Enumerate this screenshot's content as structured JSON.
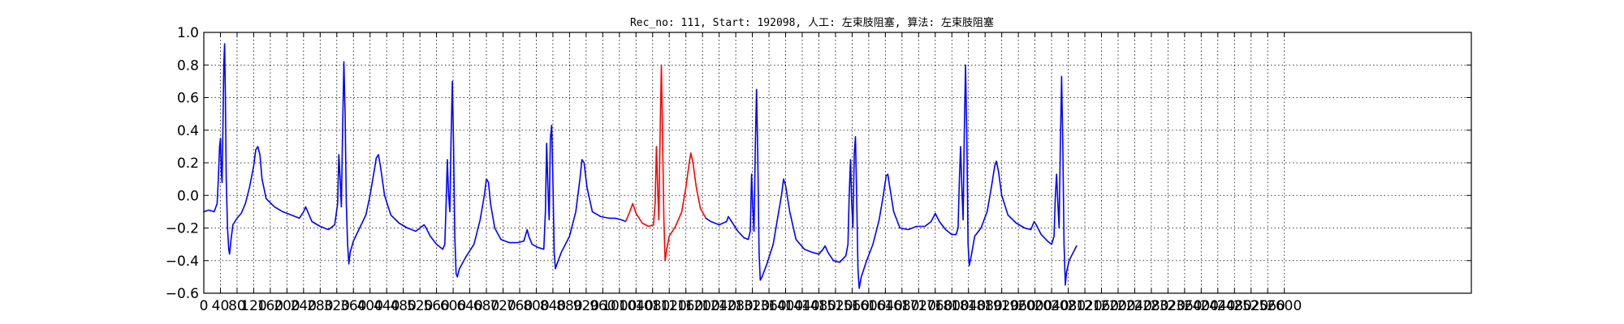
{
  "chart_data": {
    "type": "line",
    "title": "Rec_no: 111, Start: 192098, 人工: 左束肢阻塞, 算法: 左束肢阻塞",
    "xlabel": "",
    "ylabel": "",
    "xlim": [
      0,
      3050
    ],
    "ylim": [
      -0.6,
      1.0
    ],
    "grid": true,
    "xticks": [
      0,
      40,
      80,
      120,
      160,
      200,
      240,
      280,
      320,
      360,
      400,
      440,
      480,
      520,
      560,
      600,
      640,
      680,
      720,
      760,
      800,
      840,
      880,
      920,
      960,
      1000,
      1040,
      1080,
      1120,
      1160,
      1200,
      1240,
      1280,
      1320,
      1360,
      1400,
      1440,
      1480,
      1520,
      1560,
      1600,
      1640,
      1680,
      1720,
      1760,
      1800,
      1840,
      1880,
      1920,
      1960,
      2000,
      2040,
      2080,
      2120,
      2160,
      2200,
      2240,
      2280,
      2320,
      2360,
      2400,
      2440,
      2480,
      2520,
      2560,
      2600
    ],
    "xtick_labels": [
      "0",
      "40",
      "80",
      "120",
      "160",
      "200",
      "240",
      "280",
      "320",
      "360",
      "400",
      "440",
      "480",
      "520",
      "560",
      "600",
      "640",
      "680",
      "720",
      "760",
      "800",
      "840",
      "880",
      "920",
      "960",
      "1000",
      "1040",
      "1080",
      "1120",
      "1160",
      "1200",
      "1240",
      "1280",
      "1320",
      "1360",
      "1400",
      "1440",
      "1480",
      "1520",
      "1560",
      "1600",
      "1640",
      "1680",
      "1720",
      "1760",
      "1800",
      "1840",
      "1880",
      "1920",
      "1960",
      "2000",
      "2040",
      "2080",
      "2120",
      "2160",
      "2200",
      "2240",
      "2280",
      "2320",
      "2360",
      "2400",
      "2440",
      "2480",
      "2520",
      "2560",
      "2600"
    ],
    "yticks": [
      -0.6,
      -0.4,
      -0.2,
      0.0,
      0.2,
      0.4,
      0.6,
      0.8,
      1.0
    ],
    "ytick_labels": [
      "−0.6",
      "−0.4",
      "−0.2",
      "0.0",
      "0.2",
      "0.4",
      "0.6",
      "0.8",
      "1.0"
    ],
    "series": [
      {
        "color": "#0000ff",
        "points": [
          [
            0,
            -0.1
          ],
          [
            12,
            -0.09
          ],
          [
            25,
            -0.1
          ],
          [
            32,
            -0.05
          ],
          [
            35,
            0.1
          ],
          [
            38,
            0.3
          ],
          [
            40,
            0.35
          ],
          [
            42,
            0.15
          ],
          [
            44,
            0.08
          ],
          [
            46,
            0.4
          ],
          [
            48,
            0.8
          ],
          [
            50,
            0.93
          ],
          [
            52,
            0.6
          ],
          [
            54,
            0.1
          ],
          [
            57,
            -0.2
          ],
          [
            60,
            -0.33
          ],
          [
            62,
            -0.36
          ],
          [
            65,
            -0.28
          ],
          [
            70,
            -0.18
          ],
          [
            80,
            -0.14
          ],
          [
            90,
            -0.11
          ],
          [
            100,
            -0.05
          ],
          [
            110,
            0.05
          ],
          [
            120,
            0.18
          ],
          [
            125,
            0.28
          ],
          [
            130,
            0.3
          ],
          [
            135,
            0.25
          ],
          [
            140,
            0.1
          ],
          [
            150,
            -0.02
          ],
          [
            170,
            -0.07
          ],
          [
            190,
            -0.1
          ],
          [
            210,
            -0.12
          ],
          [
            230,
            -0.14
          ],
          [
            240,
            -0.1
          ],
          [
            245,
            -0.07
          ],
          [
            250,
            -0.1
          ],
          [
            260,
            -0.16
          ],
          [
            280,
            -0.19
          ],
          [
            300,
            -0.21
          ],
          [
            315,
            -0.18
          ],
          [
            322,
            -0.05
          ],
          [
            325,
            0.25
          ],
          [
            328,
            0.1
          ],
          [
            331,
            -0.07
          ],
          [
            334,
            0.4
          ],
          [
            337,
            0.82
          ],
          [
            340,
            0.5
          ],
          [
            343,
            -0.05
          ],
          [
            346,
            -0.3
          ],
          [
            349,
            -0.42
          ],
          [
            352,
            -0.35
          ],
          [
            360,
            -0.28
          ],
          [
            375,
            -0.2
          ],
          [
            390,
            -0.12
          ],
          [
            400,
            0.0
          ],
          [
            410,
            0.15
          ],
          [
            415,
            0.23
          ],
          [
            420,
            0.25
          ],
          [
            425,
            0.18
          ],
          [
            435,
            0.0
          ],
          [
            450,
            -0.12
          ],
          [
            470,
            -0.17
          ],
          [
            490,
            -0.2
          ],
          [
            510,
            -0.22
          ],
          [
            525,
            -0.19
          ],
          [
            530,
            -0.18
          ],
          [
            535,
            -0.2
          ],
          [
            545,
            -0.25
          ],
          [
            560,
            -0.3
          ],
          [
            575,
            -0.33
          ],
          [
            580,
            -0.3
          ],
          [
            583,
            -0.05
          ],
          [
            586,
            0.22
          ],
          [
            589,
            0.0
          ],
          [
            592,
            -0.1
          ],
          [
            595,
            0.35
          ],
          [
            598,
            0.7
          ],
          [
            601,
            0.3
          ],
          [
            604,
            -0.25
          ],
          [
            607,
            -0.48
          ],
          [
            610,
            -0.5
          ],
          [
            615,
            -0.45
          ],
          [
            630,
            -0.38
          ],
          [
            650,
            -0.3
          ],
          [
            665,
            -0.15
          ],
          [
            675,
            0.0
          ],
          [
            680,
            0.1
          ],
          [
            685,
            0.08
          ],
          [
            690,
            -0.05
          ],
          [
            700,
            -0.2
          ],
          [
            715,
            -0.27
          ],
          [
            735,
            -0.29
          ],
          [
            755,
            -0.29
          ],
          [
            770,
            -0.28
          ],
          [
            778,
            -0.21
          ],
          [
            782,
            -0.25
          ],
          [
            790,
            -0.3
          ],
          [
            805,
            -0.32
          ],
          [
            818,
            -0.33
          ],
          [
            822,
            -0.1
          ],
          [
            825,
            0.32
          ],
          [
            828,
            0.05
          ],
          [
            831,
            -0.15
          ],
          [
            834,
            0.35
          ],
          [
            837,
            0.43
          ],
          [
            840,
            0.1
          ],
          [
            843,
            -0.35
          ],
          [
            846,
            -0.45
          ],
          [
            850,
            -0.42
          ],
          [
            860,
            -0.35
          ],
          [
            880,
            -0.25
          ],
          [
            895,
            -0.1
          ],
          [
            905,
            0.1
          ],
          [
            910,
            0.22
          ],
          [
            915,
            0.2
          ],
          [
            922,
            0.05
          ],
          [
            935,
            -0.1
          ],
          [
            955,
            -0.13
          ],
          [
            975,
            -0.14
          ],
          [
            990,
            -0.14
          ],
          [
            1005,
            -0.15
          ],
          [
            1015,
            -0.16
          ]
        ]
      },
      {
        "color": "#ff0000",
        "points": [
          [
            1015,
            -0.16
          ],
          [
            1025,
            -0.1
          ],
          [
            1032,
            -0.05
          ],
          [
            1040,
            -0.11
          ],
          [
            1055,
            -0.17
          ],
          [
            1070,
            -0.19
          ],
          [
            1082,
            -0.18
          ],
          [
            1086,
            -0.05
          ],
          [
            1089,
            0.3
          ],
          [
            1092,
            0.05
          ],
          [
            1095,
            -0.15
          ],
          [
            1098,
            0.4
          ],
          [
            1101,
            0.8
          ],
          [
            1104,
            0.35
          ],
          [
            1107,
            -0.15
          ],
          [
            1110,
            -0.4
          ],
          [
            1114,
            -0.33
          ],
          [
            1120,
            -0.25
          ],
          [
            1135,
            -0.19
          ],
          [
            1150,
            -0.1
          ],
          [
            1160,
            0.05
          ],
          [
            1168,
            0.2
          ],
          [
            1172,
            0.26
          ],
          [
            1177,
            0.2
          ],
          [
            1185,
            0.05
          ],
          [
            1195,
            -0.08
          ],
          [
            1208,
            -0.14
          ]
        ]
      },
      {
        "color": "#0000ff",
        "points": [
          [
            1208,
            -0.14
          ],
          [
            1220,
            -0.16
          ],
          [
            1240,
            -0.18
          ],
          [
            1258,
            -0.16
          ],
          [
            1262,
            -0.13
          ],
          [
            1270,
            -0.16
          ],
          [
            1285,
            -0.22
          ],
          [
            1300,
            -0.26
          ],
          [
            1310,
            -0.27
          ],
          [
            1315,
            -0.22
          ],
          [
            1318,
            0.13
          ],
          [
            1321,
            -0.08
          ],
          [
            1324,
            -0.22
          ],
          [
            1327,
            0.3
          ],
          [
            1330,
            0.65
          ],
          [
            1333,
            0.25
          ],
          [
            1336,
            -0.35
          ],
          [
            1339,
            -0.52
          ],
          [
            1343,
            -0.5
          ],
          [
            1355,
            -0.42
          ],
          [
            1370,
            -0.3
          ],
          [
            1380,
            -0.15
          ],
          [
            1390,
            0.0
          ],
          [
            1395,
            0.1
          ],
          [
            1400,
            0.06
          ],
          [
            1410,
            -0.1
          ],
          [
            1425,
            -0.27
          ],
          [
            1445,
            -0.33
          ],
          [
            1465,
            -0.35
          ],
          [
            1480,
            -0.36
          ],
          [
            1490,
            -0.33
          ],
          [
            1495,
            -0.31
          ],
          [
            1502,
            -0.35
          ],
          [
            1515,
            -0.4
          ],
          [
            1530,
            -0.41
          ],
          [
            1545,
            -0.37
          ],
          [
            1550,
            -0.3
          ],
          [
            1553,
            0.0
          ],
          [
            1556,
            0.22
          ],
          [
            1559,
            -0.05
          ],
          [
            1562,
            -0.2
          ],
          [
            1565,
            0.25
          ],
          [
            1568,
            0.36
          ],
          [
            1571,
            0.0
          ],
          [
            1574,
            -0.45
          ],
          [
            1577,
            -0.57
          ],
          [
            1582,
            -0.5
          ],
          [
            1595,
            -0.4
          ],
          [
            1610,
            -0.3
          ],
          [
            1625,
            -0.15
          ],
          [
            1635,
            0.0
          ],
          [
            1642,
            0.12
          ],
          [
            1646,
            0.13
          ],
          [
            1650,
            0.06
          ],
          [
            1660,
            -0.1
          ],
          [
            1675,
            -0.2
          ],
          [
            1695,
            -0.21
          ],
          [
            1715,
            -0.19
          ],
          [
            1735,
            -0.19
          ],
          [
            1750,
            -0.16
          ],
          [
            1760,
            -0.11
          ],
          [
            1770,
            -0.16
          ],
          [
            1785,
            -0.21
          ],
          [
            1800,
            -0.24
          ],
          [
            1810,
            -0.24
          ],
          [
            1815,
            -0.2
          ],
          [
            1818,
            0.1
          ],
          [
            1821,
            0.3
          ],
          [
            1824,
            0.05
          ],
          [
            1827,
            -0.15
          ],
          [
            1830,
            0.4
          ],
          [
            1833,
            0.8
          ],
          [
            1836,
            0.35
          ],
          [
            1839,
            -0.3
          ],
          [
            1842,
            -0.43
          ],
          [
            1846,
            -0.38
          ],
          [
            1855,
            -0.25
          ],
          [
            1870,
            -0.2
          ],
          [
            1885,
            -0.1
          ],
          [
            1895,
            0.05
          ],
          [
            1903,
            0.18
          ],
          [
            1907,
            0.21
          ],
          [
            1912,
            0.15
          ],
          [
            1920,
            0.0
          ],
          [
            1935,
            -0.12
          ],
          [
            1955,
            -0.17
          ],
          [
            1975,
            -0.2
          ],
          [
            1990,
            -0.21
          ],
          [
            1998,
            -0.16
          ],
          [
            2003,
            -0.18
          ],
          [
            2015,
            -0.24
          ],
          [
            2030,
            -0.28
          ],
          [
            2040,
            -0.3
          ],
          [
            2046,
            -0.25
          ],
          [
            2049,
            0.0
          ],
          [
            2052,
            0.13
          ],
          [
            2055,
            -0.05
          ],
          [
            2058,
            -0.2
          ],
          [
            2061,
            0.3
          ],
          [
            2064,
            0.73
          ],
          [
            2067,
            0.3
          ],
          [
            2070,
            -0.3
          ],
          [
            2073,
            -0.55
          ],
          [
            2076,
            -0.47
          ],
          [
            2082,
            -0.4
          ],
          [
            2090,
            -0.36
          ],
          [
            2100,
            -0.31
          ]
        ]
      }
    ]
  }
}
